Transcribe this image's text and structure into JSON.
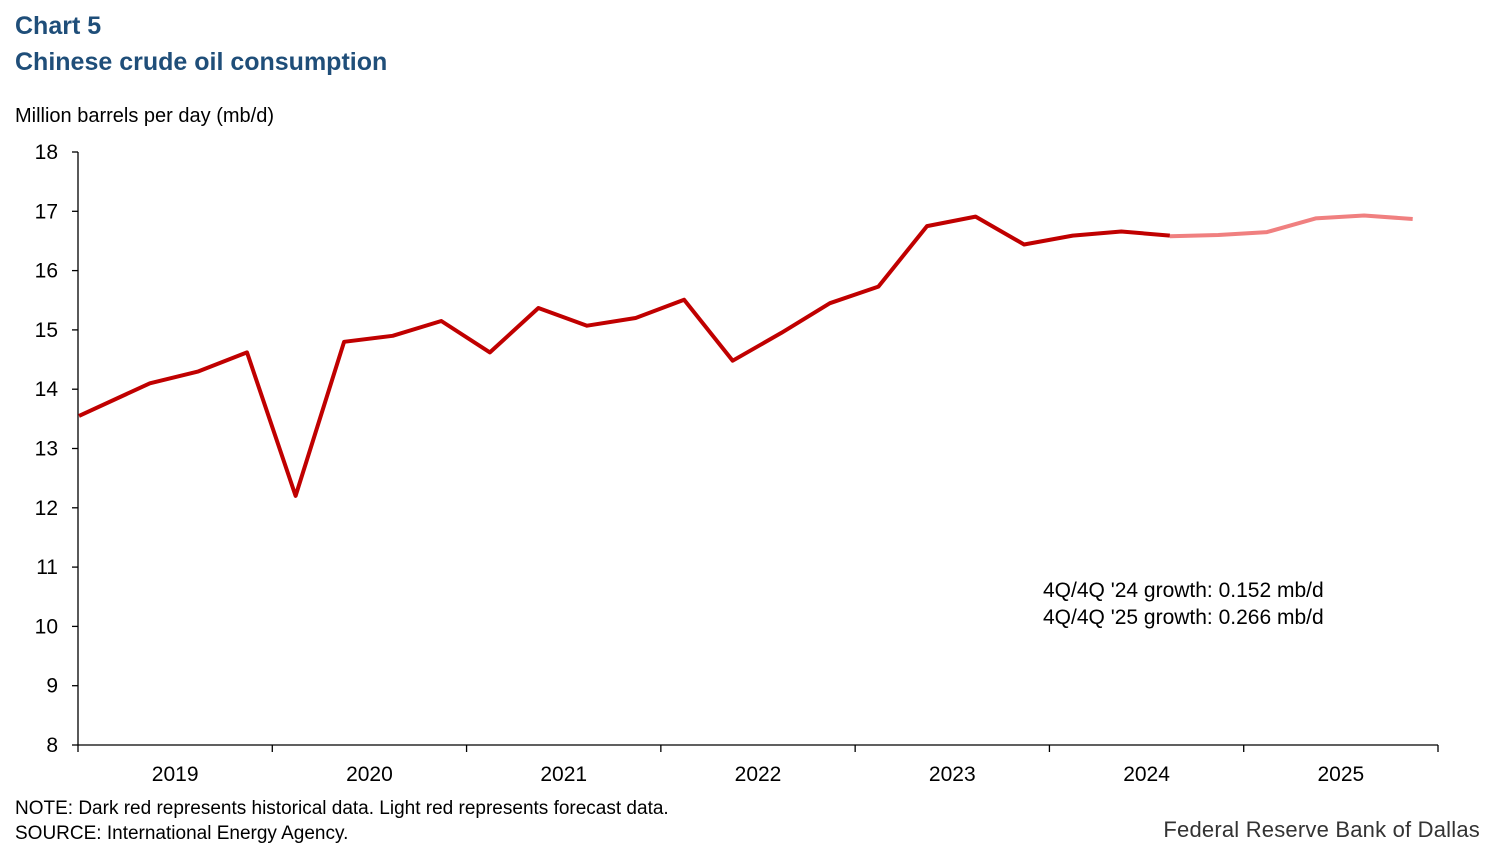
{
  "header": {
    "chart_number": "Chart 5",
    "title": "Chinese crude oil consumption"
  },
  "footer": {
    "note": "NOTE: Dark red represents historical data. Light red represents forecast data.",
    "source": "SOURCE: International  Energy Agency.",
    "brand": "Federal Reserve Bank of Dallas"
  },
  "colors": {
    "title": "#1f4e79",
    "historical": "#c00000",
    "forecast": "#f08080",
    "axis": "#000000"
  },
  "chart_data": {
    "type": "line",
    "title": "Chinese crude oil consumption",
    "ylabel": "Million barrels per day (mb/d)",
    "xlabel": "",
    "ylim": [
      8,
      18
    ],
    "yticks": [
      8,
      9,
      10,
      11,
      12,
      13,
      14,
      15,
      16,
      17,
      18
    ],
    "year_labels": [
      "2019",
      "2020",
      "2021",
      "2022",
      "2023",
      "2024",
      "2025"
    ],
    "quarters": [
      "2019Q1",
      "2019Q2",
      "2019Q3",
      "2019Q4",
      "2020Q1",
      "2020Q2",
      "2020Q3",
      "2020Q4",
      "2021Q1",
      "2021Q2",
      "2021Q3",
      "2021Q4",
      "2022Q1",
      "2022Q2",
      "2022Q3",
      "2022Q4",
      "2023Q1",
      "2023Q2",
      "2023Q3",
      "2023Q4",
      "2024Q1",
      "2024Q2",
      "2024Q3",
      "2024Q4",
      "2025Q1",
      "2025Q2",
      "2025Q3",
      "2025Q4"
    ],
    "series": [
      {
        "name": "Historical",
        "color": "#c00000",
        "values": [
          13.55,
          14.1,
          14.3,
          14.62,
          12.2,
          14.8,
          14.9,
          15.15,
          14.62,
          15.37,
          15.07,
          15.2,
          15.51,
          14.48,
          14.95,
          15.45,
          15.73,
          16.75,
          16.91,
          16.44,
          16.59,
          16.66,
          16.59,
          null,
          null,
          null,
          null,
          null
        ]
      },
      {
        "name": "Forecast",
        "color": "#f08080",
        "values": [
          null,
          null,
          null,
          null,
          null,
          null,
          null,
          null,
          null,
          null,
          null,
          null,
          null,
          null,
          null,
          null,
          null,
          null,
          null,
          null,
          null,
          null,
          16.58,
          16.6,
          16.65,
          16.88,
          16.93,
          16.87
        ]
      }
    ],
    "annotations": [
      "4Q/4Q '24 growth: 0.152 mb/d",
      "4Q/4Q '25 growth: 0.266 mb/d"
    ]
  }
}
